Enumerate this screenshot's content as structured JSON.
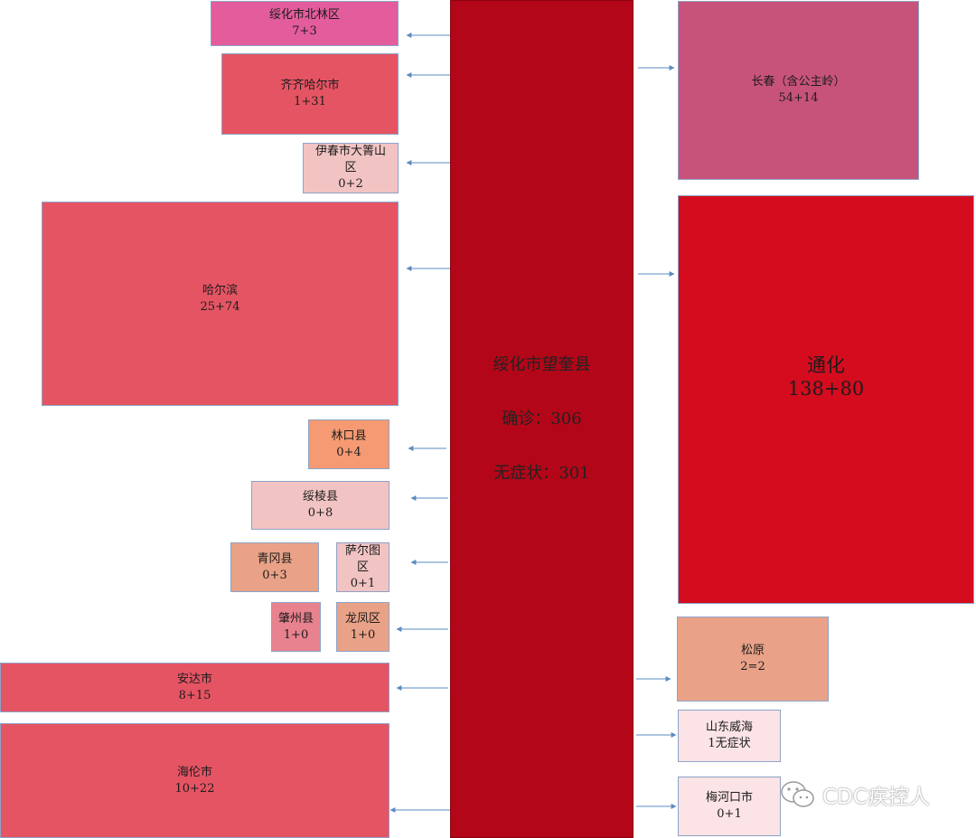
{
  "center": {
    "title": "绥化市望奎县",
    "confirmed": "确诊：306",
    "asymptomatic": "无症状：301"
  },
  "nodes": {
    "beilin": {
      "name": "绥化市北林区",
      "value": "7+3"
    },
    "qiqihar": {
      "name": "齐齐哈尔市",
      "value": "1+31"
    },
    "yichun_1": "伊春市大箐山",
    "yichun_2": "区",
    "yichun_value": "0+2",
    "harbin": {
      "name": "哈尔滨",
      "value": "25+74"
    },
    "linkou": {
      "name": "林口县",
      "value": "0+4"
    },
    "suiling": {
      "name": "绥棱县",
      "value": "0+8"
    },
    "qinggang": {
      "name": "青冈县",
      "value": "0+3"
    },
    "saertu_1": "萨尔图",
    "saertu_2": "区",
    "saertu_value": "0+1",
    "zhaozhou": {
      "name": "肇州县",
      "value": "1+0"
    },
    "longfeng": {
      "name": "龙凤区",
      "value": "1+0"
    },
    "anda": {
      "name": "安达市",
      "value": "8+15"
    },
    "hailun": {
      "name": "海伦市",
      "value": "10+22"
    },
    "changchun": {
      "name": "长春（含公主岭）",
      "value": "54+14"
    },
    "tonghua": {
      "name": "通化",
      "value": "138+80"
    },
    "songyuan": {
      "name": "松原",
      "value": "2=2"
    },
    "weihai": {
      "name": "山东威海",
      "value": "1无症状"
    },
    "meihekou": {
      "name": "梅河口市",
      "value": "0+1"
    }
  },
  "colors": {
    "center": "#b30618",
    "arrow": "#5b8bc1",
    "tonghua": "#d40c1e",
    "changchun": "#c8537a",
    "beilin": "#e35c9c",
    "cluster_red": "#e55463",
    "light": "#f2c3c3",
    "orange": "#f59a73",
    "pale": "#fbe3e6"
  },
  "watermark": {
    "icon": "wechat-icon",
    "text": "CDC疾控人"
  }
}
